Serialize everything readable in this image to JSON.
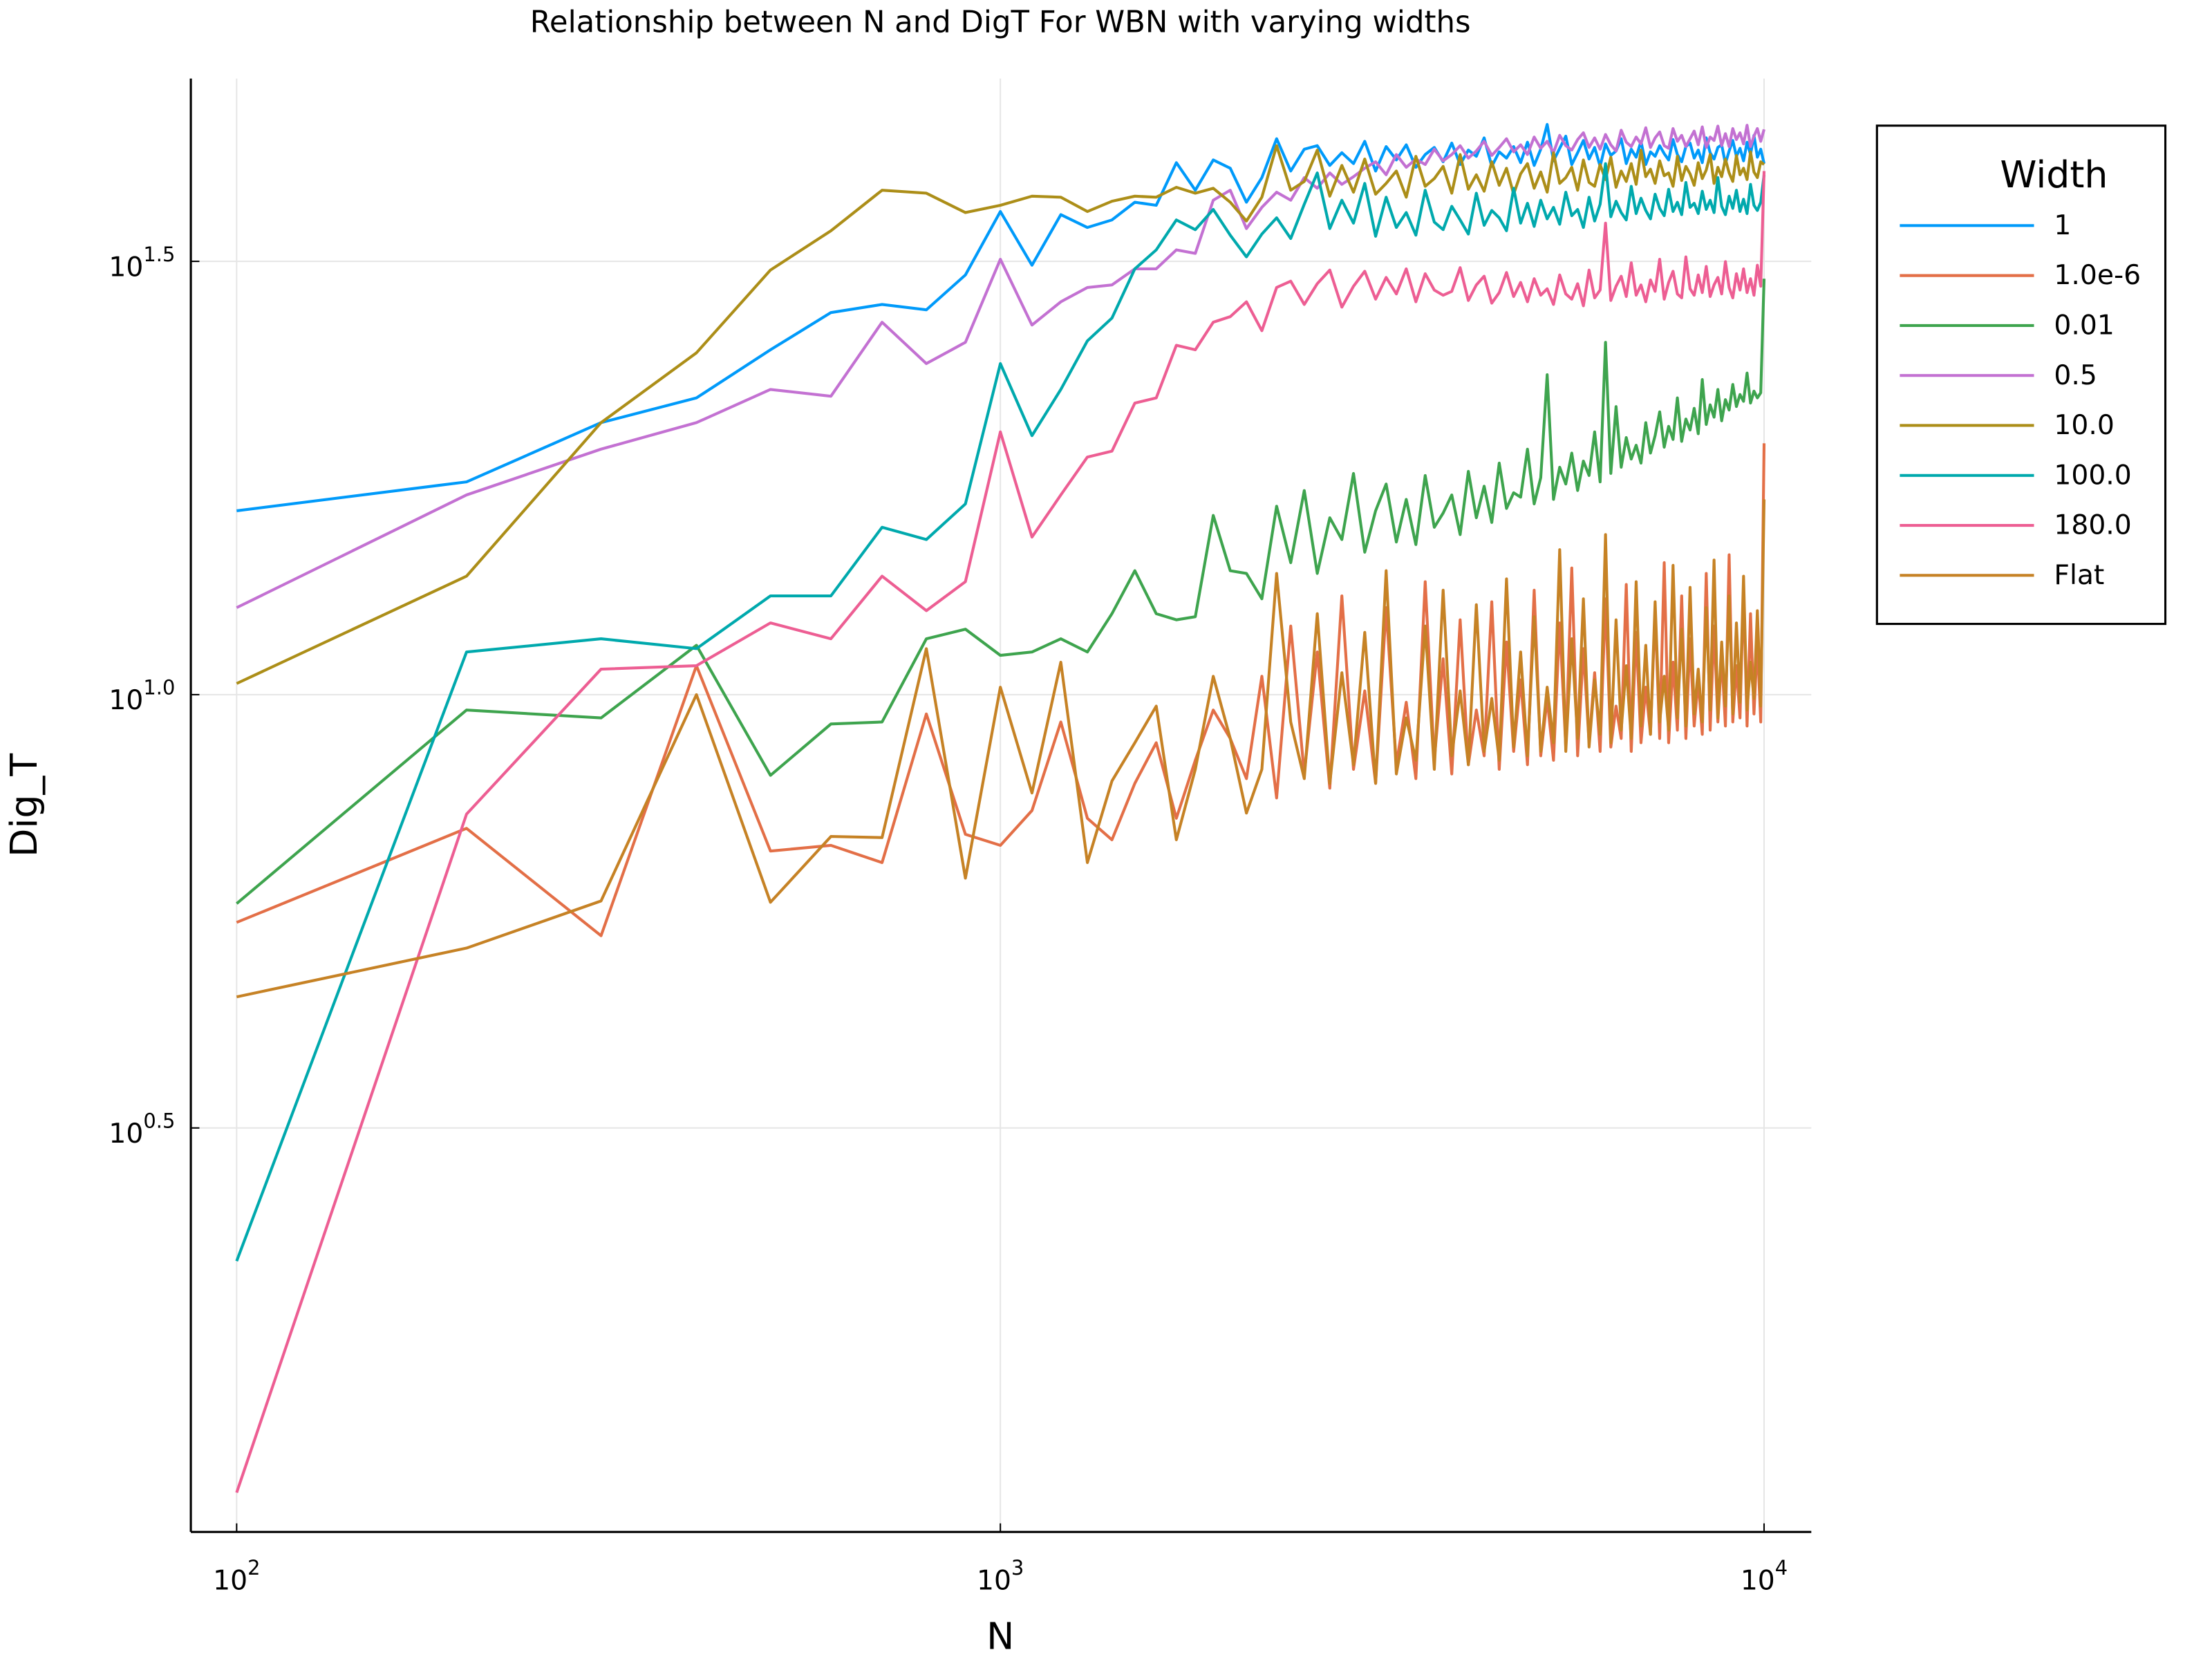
{
  "chart_data": {
    "type": "line",
    "title": "Relationship between N and DigT For WBN with varying widths",
    "x_label": "N",
    "y_label": "Dig_T",
    "legend_title": "Width",
    "xscale": "log",
    "yscale": "log",
    "grid": true,
    "legend_position": "outer-right",
    "xlim": [
      87.1,
      11530
    ],
    "ylim": [
      1.081,
      51.4
    ],
    "xticks": [
      {
        "value": 100,
        "label": "10^2"
      },
      {
        "value": 1000,
        "label": "10^3"
      },
      {
        "value": 10000,
        "label": "10^4"
      }
    ],
    "yticks": [
      {
        "value": 3.1623,
        "label": "10^0.5"
      },
      {
        "value": 10,
        "label": "10^1.0"
      },
      {
        "value": 31.623,
        "label": "10^1.5"
      }
    ],
    "x": [
      100,
      200,
      300,
      400,
      500,
      600,
      700,
      800,
      900,
      1000,
      1100,
      1200,
      1300,
      1400,
      1500,
      1600,
      1700,
      1800,
      1900,
      2000,
      2100,
      2200,
      2300,
      2400,
      2500,
      2600,
      2700,
      2800,
      2900,
      3000,
      3100,
      3200,
      3300,
      3400,
      3500,
      3600,
      3700,
      3800,
      3900,
      4000,
      4100,
      4200,
      4300,
      4400,
      4500,
      4600,
      4700,
      4800,
      4900,
      5000,
      5100,
      5200,
      5300,
      5400,
      5500,
      5600,
      5700,
      5800,
      5900,
      6000,
      6100,
      6200,
      6300,
      6400,
      6500,
      6600,
      6700,
      6800,
      6900,
      7000,
      7100,
      7200,
      7300,
      7400,
      7500,
      7600,
      7700,
      7800,
      7900,
      8000,
      8100,
      8200,
      8300,
      8400,
      8500,
      8600,
      8700,
      8800,
      8900,
      9000,
      9100,
      9200,
      9300,
      9400,
      9500,
      9600,
      9700,
      9800,
      9900,
      10000
    ],
    "series": [
      {
        "name": "1",
        "color": "#009afa",
        "values": [
          16.3,
          17.6,
          20.6,
          22.0,
          25.0,
          27.6,
          28.2,
          27.8,
          30.5,
          36.1,
          31.3,
          35.8,
          34.6,
          35.3,
          37.0,
          36.7,
          41.1,
          38.2,
          41.4,
          40.5,
          37.0,
          39.5,
          43.8,
          40.2,
          42.6,
          43.0,
          40.8,
          42.2,
          41.0,
          43.5,
          40.2,
          42.9,
          41.4,
          43.1,
          40.6,
          42.0,
          42.8,
          41.2,
          43.3,
          40.9,
          42.5,
          41.8,
          43.9,
          40.7,
          42.3,
          41.6,
          42.9,
          41.1,
          43.4,
          40.8,
          42.6,
          45.5,
          41.3,
          42.7,
          44.1,
          40.9,
          42.2,
          43.6,
          41.5,
          42.8,
          40.7,
          43.2,
          41.9,
          42.4,
          43.8,
          41.0,
          42.6,
          41.7,
          43.5,
          40.9,
          42.3,
          41.8,
          43.0,
          42.1,
          41.4,
          43.7,
          42.0,
          41.2,
          42.9,
          43.3,
          41.6,
          42.5,
          41.1,
          43.9,
          42.2,
          41.5,
          42.8,
          43.1,
          41.0,
          42.4,
          43.6,
          41.8,
          42.7,
          41.3,
          43.4,
          42.0,
          44.2,
          41.7,
          42.6,
          41.0
        ]
      },
      {
        "name": "1.0e-6",
        "color": "#e36f47",
        "values": [
          5.46,
          7.01,
          5.27,
          10.8,
          6.6,
          6.7,
          6.4,
          9.5,
          6.9,
          6.7,
          7.35,
          9.3,
          7.2,
          6.8,
          7.9,
          8.8,
          7.2,
          8.4,
          9.6,
          8.9,
          8.0,
          10.5,
          7.6,
          12.0,
          8.1,
          11.2,
          7.8,
          13.0,
          8.2,
          10.1,
          7.9,
          12.6,
          8.3,
          9.8,
          8.0,
          13.5,
          8.4,
          11.0,
          8.1,
          12.2,
          8.3,
          9.6,
          8.5,
          12.8,
          8.2,
          11.5,
          8.6,
          10.4,
          8.3,
          13.2,
          8.5,
          9.9,
          8.4,
          12.1,
          8.7,
          14.0,
          8.5,
          11.3,
          8.8,
          10.6,
          8.6,
          12.9,
          8.7,
          9.7,
          8.9,
          13.4,
          8.6,
          11.8,
          8.8,
          10.2,
          9.0,
          12.5,
          8.9,
          14.2,
          8.8,
          10.9,
          9.1,
          13.0,
          8.9,
          11.6,
          9.2,
          10.4,
          9.0,
          13.8,
          9.1,
          12.0,
          9.3,
          11.1,
          9.2,
          14.5,
          9.3,
          10.8,
          9.4,
          13.3,
          9.2,
          12.4,
          9.5,
          11.5,
          9.3,
          19.5
        ]
      },
      {
        "name": "0.01",
        "color": "#3ea44e",
        "values": [
          5.74,
          9.6,
          9.4,
          11.4,
          8.07,
          9.25,
          9.3,
          11.6,
          11.9,
          11.1,
          11.2,
          11.6,
          11.2,
          12.4,
          13.9,
          12.4,
          12.2,
          12.3,
          16.1,
          13.9,
          13.8,
          12.9,
          16.5,
          14.2,
          17.2,
          13.8,
          16.0,
          15.1,
          18.0,
          14.6,
          16.3,
          17.5,
          15.0,
          16.8,
          14.9,
          17.9,
          15.6,
          16.2,
          17.0,
          15.3,
          18.1,
          16.0,
          17.4,
          15.8,
          18.5,
          16.4,
          17.1,
          16.9,
          19.2,
          16.6,
          17.8,
          23.4,
          16.8,
          18.3,
          17.5,
          19.0,
          17.2,
          18.6,
          17.9,
          20.1,
          17.6,
          25.5,
          18.0,
          21.5,
          18.3,
          19.8,
          18.7,
          19.4,
          18.5,
          20.6,
          19.0,
          19.9,
          21.2,
          19.3,
          20.4,
          19.7,
          22.0,
          19.6,
          20.8,
          20.2,
          21.4,
          20.0,
          23.1,
          20.5,
          21.6,
          20.9,
          22.5,
          20.7,
          21.9,
          21.3,
          22.8,
          21.5,
          22.2,
          21.8,
          23.5,
          21.7,
          22.4,
          22.0,
          22.3,
          30.2
        ]
      },
      {
        "name": "0.5",
        "color": "#c371d2",
        "values": [
          12.6,
          17.0,
          19.2,
          20.6,
          22.5,
          22.1,
          26.9,
          24.1,
          25.5,
          31.8,
          26.7,
          28.4,
          29.5,
          29.7,
          31.0,
          31.0,
          32.6,
          32.3,
          37.2,
          38.2,
          34.5,
          36.5,
          38.0,
          37.2,
          39.5,
          38.4,
          40.0,
          38.8,
          39.6,
          40.5,
          41.2,
          39.8,
          42.0,
          40.6,
          41.5,
          40.9,
          42.6,
          41.3,
          42.0,
          43.0,
          41.6,
          42.4,
          43.5,
          41.9,
          42.8,
          43.8,
          42.3,
          43.1,
          42.0,
          44.0,
          42.7,
          43.5,
          42.2,
          44.2,
          43.0,
          42.5,
          43.7,
          44.5,
          42.8,
          43.9,
          42.6,
          44.3,
          43.1,
          42.4,
          44.8,
          43.4,
          42.9,
          44.0,
          43.2,
          45.1,
          42.8,
          43.9,
          44.6,
          43.0,
          42.7,
          45.0,
          43.5,
          44.2,
          42.9,
          43.8,
          44.7,
          43.1,
          45.2,
          42.8,
          44.0,
          43.6,
          45.3,
          43.0,
          44.4,
          42.9,
          45.0,
          43.7,
          44.5,
          43.2,
          45.4,
          42.9,
          44.1,
          45.0,
          43.5,
          44.9
        ]
      },
      {
        "name": "10.0",
        "color": "#ac8e18",
        "values": [
          10.3,
          13.7,
          20.6,
          24.8,
          30.9,
          34.3,
          38.2,
          37.9,
          36.0,
          36.7,
          37.6,
          37.5,
          36.1,
          37.1,
          37.6,
          37.5,
          38.5,
          37.9,
          38.4,
          37.0,
          35.2,
          37.5,
          43.0,
          38.2,
          39.1,
          42.5,
          37.6,
          40.8,
          38.0,
          41.5,
          37.8,
          38.9,
          40.2,
          37.5,
          41.8,
          38.6,
          39.4,
          40.7,
          37.9,
          42.0,
          38.3,
          39.8,
          38.1,
          41.2,
          38.7,
          40.5,
          37.8,
          39.9,
          41.0,
          38.4,
          40.1,
          38.0,
          42.2,
          38.9,
          39.5,
          40.6,
          38.2,
          41.4,
          39.0,
          38.6,
          40.9,
          39.3,
          41.7,
          38.5,
          40.2,
          39.1,
          41.0,
          38.8,
          42.5,
          39.6,
          40.4,
          38.9,
          41.3,
          39.7,
          40.0,
          38.6,
          41.8,
          39.2,
          40.7,
          39.9,
          38.7,
          41.1,
          39.4,
          40.3,
          42.0,
          38.9,
          40.6,
          39.6,
          41.5,
          40.0,
          39.1,
          41.9,
          39.8,
          40.5,
          39.3,
          42.3,
          40.1,
          39.5,
          41.2,
          40.9
        ]
      },
      {
        "name": "100.0",
        "color": "#00a9ad",
        "values": [
          2.22,
          11.2,
          11.6,
          11.3,
          13.0,
          13.0,
          15.6,
          15.1,
          16.6,
          24.1,
          19.9,
          22.5,
          25.6,
          27.2,
          31.0,
          32.6,
          35.3,
          34.4,
          36.3,
          33.9,
          32.0,
          34.0,
          35.5,
          33.6,
          36.8,
          40.0,
          34.5,
          37.2,
          35.0,
          38.9,
          33.8,
          37.5,
          34.6,
          36.0,
          33.9,
          38.2,
          35.1,
          34.4,
          36.6,
          35.3,
          34.0,
          37.9,
          34.8,
          36.2,
          35.5,
          34.3,
          38.4,
          35.0,
          36.9,
          34.7,
          37.2,
          35.4,
          36.5,
          34.9,
          38.0,
          35.7,
          36.3,
          34.6,
          37.5,
          35.2,
          36.8,
          41.0,
          35.6,
          37.1,
          36.0,
          35.3,
          38.6,
          35.9,
          37.4,
          36.2,
          35.4,
          37.8,
          36.4,
          35.7,
          38.3,
          36.1,
          37.0,
          35.8,
          39.0,
          36.5,
          36.9,
          35.9,
          38.1,
          36.3,
          37.2,
          36.0,
          39.5,
          36.6,
          35.8,
          37.6,
          36.4,
          38.2,
          36.1,
          37.3,
          35.9,
          38.8,
          36.7,
          36.2,
          37.0,
          39.8
        ]
      },
      {
        "name": "180.0",
        "color": "#ed5e93",
        "values": [
          1.2,
          7.28,
          10.7,
          10.8,
          12.1,
          11.6,
          13.7,
          12.5,
          13.5,
          20.1,
          15.2,
          17.0,
          18.8,
          19.1,
          21.7,
          22.0,
          25.3,
          25.0,
          26.9,
          27.3,
          28.4,
          26.3,
          29.5,
          30.0,
          28.2,
          29.8,
          30.9,
          28.0,
          29.6,
          30.8,
          28.6,
          30.3,
          29.0,
          31.0,
          28.4,
          30.6,
          29.3,
          28.9,
          29.2,
          31.1,
          28.5,
          29.7,
          30.4,
          28.3,
          29.1,
          30.7,
          28.8,
          29.9,
          28.4,
          30.2,
          28.9,
          29.4,
          28.2,
          30.5,
          29.0,
          28.6,
          29.8,
          28.1,
          30.9,
          28.7,
          29.3,
          35.0,
          28.5,
          29.6,
          30.4,
          28.8,
          31.5,
          28.9,
          29.7,
          28.4,
          30.1,
          29.2,
          31.8,
          28.6,
          29.9,
          30.8,
          29.0,
          28.7,
          32.0,
          29.4,
          28.9,
          30.5,
          29.1,
          31.2,
          28.8,
          29.7,
          30.3,
          29.0,
          31.6,
          29.5,
          28.7,
          30.6,
          29.3,
          31.0,
          29.1,
          30.2,
          28.9,
          31.3,
          29.6,
          40.2
        ]
      },
      {
        "name": "Flat",
        "color": "#c68225",
        "values": [
          4.48,
          5.1,
          5.78,
          10.0,
          5.76,
          6.86,
          6.84,
          11.3,
          6.14,
          10.2,
          7.7,
          10.9,
          6.4,
          7.95,
          8.8,
          9.7,
          6.8,
          8.2,
          10.5,
          8.9,
          7.3,
          8.2,
          13.8,
          9.3,
          8.0,
          12.4,
          7.9,
          10.6,
          8.3,
          11.8,
          7.9,
          13.9,
          8.1,
          9.4,
          8.4,
          12.0,
          8.2,
          13.2,
          8.5,
          10.1,
          8.3,
          12.7,
          8.6,
          9.9,
          8.4,
          13.6,
          8.7,
          11.2,
          8.5,
          12.3,
          8.6,
          10.2,
          8.8,
          14.7,
          8.6,
          11.6,
          8.9,
          12.9,
          8.7,
          10.4,
          9.0,
          15.3,
          8.8,
          12.2,
          9.1,
          10.8,
          8.9,
          13.5,
          9.2,
          11.4,
          9.0,
          12.8,
          9.3,
          10.5,
          9.1,
          14.1,
          9.4,
          11.9,
          9.2,
          13.3,
          9.5,
          10.7,
          9.3,
          12.6,
          9.6,
          14.3,
          9.4,
          11.5,
          9.7,
          13.0,
          9.5,
          12.1,
          9.8,
          13.7,
          9.6,
          10.9,
          9.9,
          12.5,
          9.7,
          16.8
        ]
      }
    ]
  }
}
